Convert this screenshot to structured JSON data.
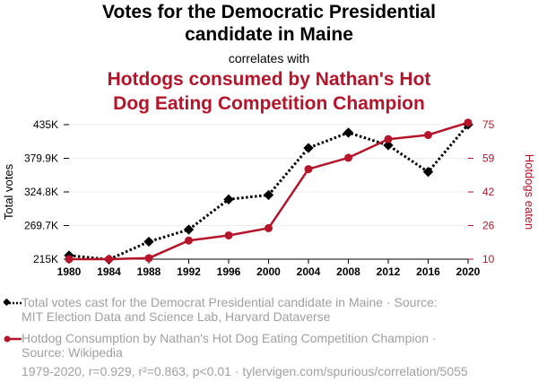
{
  "header": {
    "title_line1": "Votes for the Democratic Presidential",
    "title_line2": "candidate in Maine",
    "correlates": "correlates with",
    "subtitle_line1": "Hotdogs consumed by Nathan's Hot",
    "subtitle_line2": "Dog Eating Competition Champion"
  },
  "colors": {
    "votes": "#000000",
    "hotdogs": "#b5152b",
    "muted": "#a0a0a0"
  },
  "chart_data": {
    "type": "line",
    "x": [
      1980,
      1984,
      1988,
      1992,
      1996,
      2000,
      2004,
      2008,
      2012,
      2016,
      2020
    ],
    "xlim": [
      1980,
      2020
    ],
    "xticks": [
      "1980",
      "1984",
      "1988",
      "1992",
      "1996",
      "2000",
      "2004",
      "2008",
      "2012",
      "2016",
      "2020"
    ],
    "ylabel_left": "Total votes",
    "ylabel_right": "Hotdogs eaten",
    "y_left": {
      "ticks": [
        "215K",
        "269.7K",
        "324.8K",
        "379.9K",
        "435K"
      ],
      "range": [
        215000,
        435000
      ]
    },
    "y_right": {
      "ticks": [
        "10",
        "26",
        "42",
        "59",
        "75"
      ],
      "range": [
        10,
        75
      ]
    },
    "series": [
      {
        "name": "Total votes cast for the Democrat Presidential candidate in Maine",
        "axis": "left",
        "style": "dotted",
        "marker": "diamond",
        "values": [
          220974,
          214515,
          243569,
          263420,
          312788,
          319951,
          396842,
          421923,
          401306,
          357735,
          435072
        ]
      },
      {
        "name": "Hotdog Consumption by Nathan's Hot Dog Eating Competition Champion",
        "axis": "right",
        "style": "solid",
        "marker": "circle",
        "values": [
          10,
          10,
          10.5,
          19,
          21.5,
          25,
          53.5,
          59,
          68,
          70,
          76
        ]
      }
    ]
  },
  "legend": {
    "votes_line1": "Total votes cast for the Democrat Presidential candidate in Maine · Source:",
    "votes_line2": "MIT Election Data and Science Lab, Harvard Dataverse",
    "hotdogs_line1": "Hotdog Consumption by Nathan's Hot Dog Eating Competition Champion ·",
    "hotdogs_line2": "Source: Wikipedia"
  },
  "footer": {
    "text": "1979-2020, r=0.929, r²=0.863, p<0.01 · tylervigen.com/spurious/correlation/5055"
  }
}
